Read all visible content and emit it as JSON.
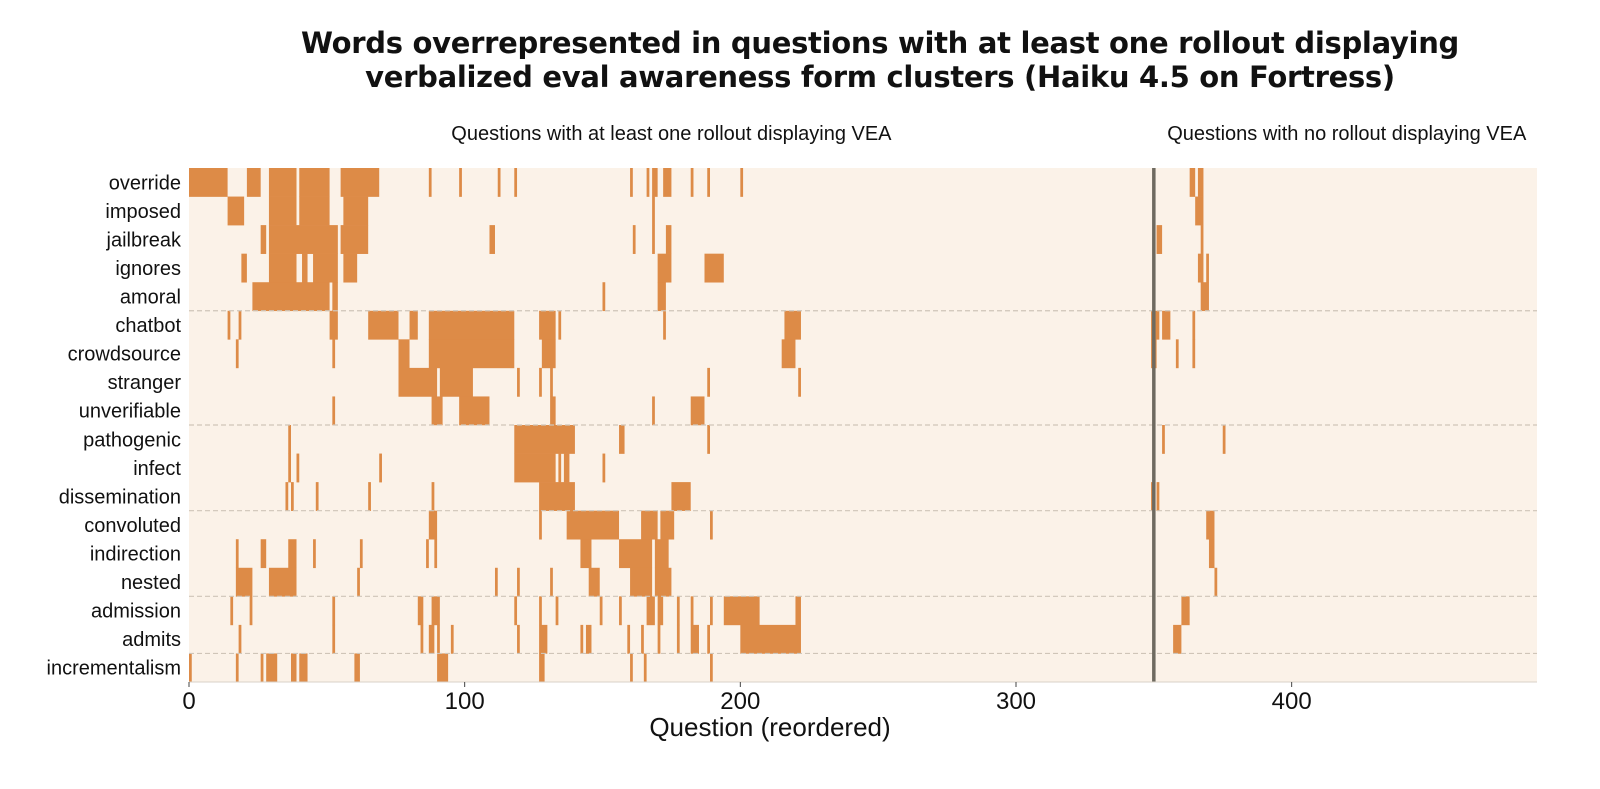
{
  "chart_data": {
    "type": "heatmap",
    "title_line1": "Words overrepresented in questions with at least one rollout displaying",
    "title_line2": "verbalized eval awareness form clusters (Haiku 4.5 on Fortress)",
    "xlabel": "Question (reordered)",
    "xlim": [
      0,
      489
    ],
    "xticks": [
      0,
      100,
      200,
      300,
      400
    ],
    "divider_x": 350,
    "section_labels": [
      {
        "text": "Questions with at least one rollout displaying VEA",
        "x_center": 175
      },
      {
        "text": "Questions with no rollout displaying VEA",
        "x_center": 420
      }
    ],
    "words": [
      "override",
      "imposed",
      "jailbreak",
      "ignores",
      "amoral",
      "chatbot",
      "crowdsource",
      "stranger",
      "unverifiable",
      "pathogenic",
      "infect",
      "dissemination",
      "convoluted",
      "indirection",
      "nested",
      "admission",
      "admits",
      "incrementalism"
    ],
    "cluster_boundaries_after_row": [
      4,
      8,
      11,
      14,
      16
    ],
    "colors": {
      "background": "#fbf2e8",
      "cell": "#dd8b47",
      "divider": "#6e6a60",
      "cluster_line": "#cfc5b8"
    },
    "present_segments": [
      [
        [
          0,
          14
        ],
        [
          21,
          26
        ],
        [
          29,
          39
        ],
        [
          40,
          51
        ],
        [
          55,
          69
        ],
        [
          87,
          88
        ],
        [
          98,
          99
        ],
        [
          112,
          113
        ],
        [
          118,
          119
        ],
        [
          160,
          161
        ],
        [
          166,
          167
        ],
        [
          168,
          170
        ],
        [
          172,
          175
        ],
        [
          182,
          183
        ],
        [
          188,
          189
        ],
        [
          200,
          201
        ],
        [
          363,
          365
        ],
        [
          366,
          368
        ]
      ],
      [
        [
          14,
          20
        ],
        [
          29,
          39
        ],
        [
          40,
          51
        ],
        [
          56,
          65
        ],
        [
          168,
          169
        ],
        [
          365,
          368
        ]
      ],
      [
        [
          26,
          28
        ],
        [
          29,
          54
        ],
        [
          55,
          65
        ],
        [
          109,
          111
        ],
        [
          161,
          162
        ],
        [
          168,
          169
        ],
        [
          173,
          175
        ],
        [
          351,
          353
        ],
        [
          367,
          368
        ]
      ],
      [
        [
          19,
          21
        ],
        [
          29,
          39
        ],
        [
          41,
          43
        ],
        [
          45,
          54
        ],
        [
          56,
          61
        ],
        [
          170,
          175
        ],
        [
          187,
          194
        ],
        [
          366,
          368
        ],
        [
          369,
          370
        ]
      ],
      [
        [
          23,
          51
        ],
        [
          52,
          54
        ],
        [
          150,
          151
        ],
        [
          170,
          173
        ],
        [
          367,
          370
        ]
      ],
      [
        [
          14,
          15
        ],
        [
          18,
          19
        ],
        [
          51,
          54
        ],
        [
          65,
          76
        ],
        [
          80,
          83
        ],
        [
          87,
          118
        ],
        [
          127,
          133
        ],
        [
          134,
          135
        ],
        [
          172,
          173
        ],
        [
          216,
          222
        ],
        [
          349,
          352
        ],
        [
          353,
          356
        ],
        [
          364,
          365
        ]
      ],
      [
        [
          17,
          18
        ],
        [
          52,
          53
        ],
        [
          76,
          80
        ],
        [
          87,
          118
        ],
        [
          128,
          133
        ],
        [
          215,
          220
        ],
        [
          349,
          351
        ],
        [
          358,
          359
        ],
        [
          364,
          365
        ]
      ],
      [
        [
          76,
          90
        ],
        [
          91,
          103
        ],
        [
          119,
          120
        ],
        [
          127,
          128
        ],
        [
          131,
          132
        ],
        [
          188,
          189
        ],
        [
          221,
          222
        ]
      ],
      [
        [
          52,
          53
        ],
        [
          88,
          92
        ],
        [
          98,
          109
        ],
        [
          131,
          133
        ],
        [
          168,
          169
        ],
        [
          182,
          187
        ]
      ],
      [
        [
          36,
          37
        ],
        [
          118,
          140
        ],
        [
          156,
          158
        ],
        [
          188,
          189
        ],
        [
          353,
          354
        ],
        [
          375,
          376
        ]
      ],
      [
        [
          36,
          37
        ],
        [
          39,
          40
        ],
        [
          69,
          70
        ],
        [
          118,
          133
        ],
        [
          134,
          135
        ],
        [
          136,
          138
        ],
        [
          150,
          151
        ]
      ],
      [
        [
          35,
          36
        ],
        [
          37,
          38
        ],
        [
          46,
          47
        ],
        [
          65,
          66
        ],
        [
          88,
          89
        ],
        [
          127,
          140
        ],
        [
          175,
          182
        ],
        [
          349,
          350
        ],
        [
          351,
          352
        ]
      ],
      [
        [
          87,
          90
        ],
        [
          127,
          128
        ],
        [
          137,
          156
        ],
        [
          164,
          170
        ],
        [
          171,
          176
        ],
        [
          189,
          190
        ],
        [
          369,
          372
        ]
      ],
      [
        [
          17,
          18
        ],
        [
          26,
          28
        ],
        [
          36,
          39
        ],
        [
          45,
          46
        ],
        [
          62,
          63
        ],
        [
          86,
          87
        ],
        [
          89,
          90
        ],
        [
          142,
          146
        ],
        [
          156,
          168
        ],
        [
          169,
          174
        ],
        [
          370,
          372
        ]
      ],
      [
        [
          17,
          23
        ],
        [
          29,
          39
        ],
        [
          61,
          62
        ],
        [
          111,
          112
        ],
        [
          119,
          120
        ],
        [
          131,
          132
        ],
        [
          145,
          149
        ],
        [
          160,
          168
        ],
        [
          169,
          175
        ],
        [
          372,
          373
        ]
      ],
      [
        [
          15,
          16
        ],
        [
          22,
          23
        ],
        [
          52,
          53
        ],
        [
          83,
          85
        ],
        [
          88,
          91
        ],
        [
          118,
          119
        ],
        [
          127,
          128
        ],
        [
          133,
          134
        ],
        [
          149,
          150
        ],
        [
          156,
          157
        ],
        [
          166,
          169
        ],
        [
          170,
          172
        ],
        [
          177,
          178
        ],
        [
          182,
          183
        ],
        [
          189,
          190
        ],
        [
          194,
          207
        ],
        [
          220,
          222
        ],
        [
          360,
          363
        ]
      ],
      [
        [
          18,
          19
        ],
        [
          52,
          53
        ],
        [
          84,
          85
        ],
        [
          87,
          89
        ],
        [
          90,
          91
        ],
        [
          95,
          96
        ],
        [
          119,
          120
        ],
        [
          127,
          130
        ],
        [
          142,
          143
        ],
        [
          144,
          146
        ],
        [
          159,
          160
        ],
        [
          164,
          165
        ],
        [
          170,
          171
        ],
        [
          177,
          178
        ],
        [
          182,
          185
        ],
        [
          188,
          189
        ],
        [
          200,
          222
        ],
        [
          357,
          360
        ]
      ],
      [
        [
          0,
          1
        ],
        [
          17,
          18
        ],
        [
          26,
          27
        ],
        [
          28,
          32
        ],
        [
          37,
          39
        ],
        [
          40,
          43
        ],
        [
          60,
          62
        ],
        [
          90,
          94
        ],
        [
          127,
          129
        ],
        [
          160,
          161
        ],
        [
          165,
          166
        ],
        [
          189,
          190
        ]
      ]
    ]
  }
}
